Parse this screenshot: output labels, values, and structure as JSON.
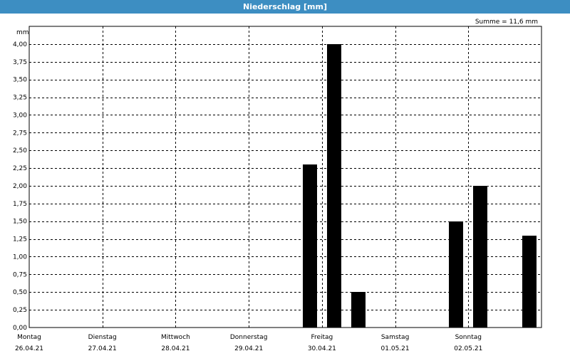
{
  "window": {
    "title": "Niederschlag [mm]"
  },
  "chart_data": {
    "type": "bar",
    "title": "Niederschlag [mm]",
    "ylabel": "mm",
    "summary": "Summe = 11,6 mm",
    "ylim": [
      0,
      4.25
    ],
    "yticks": [
      "0,00",
      "0,25",
      "0,50",
      "0,75",
      "1,00",
      "1,25",
      "1,50",
      "1,75",
      "2,00",
      "2,25",
      "2,50",
      "2,75",
      "3,00",
      "3,25",
      "3,50",
      "3,75",
      "4,00"
    ],
    "y_tick_values": [
      0,
      0.25,
      0.5,
      0.75,
      1,
      1.25,
      1.5,
      1.75,
      2,
      2.25,
      2.5,
      2.75,
      3,
      3.25,
      3.5,
      3.75,
      4
    ],
    "days": [
      {
        "weekday": "Montag",
        "date": "26.04.21"
      },
      {
        "weekday": "Dienstag",
        "date": "27.04.21"
      },
      {
        "weekday": "Mittwoch",
        "date": "28.04.21"
      },
      {
        "weekday": "Donnerstag",
        "date": "29.04.21"
      },
      {
        "weekday": "Freitag",
        "date": "30.04.21"
      },
      {
        "weekday": "Samstag",
        "date": "01.05.21"
      },
      {
        "weekday": "Sonntag",
        "date": "02.05.21"
      }
    ],
    "bars": [
      {
        "day": 3,
        "slot": 2,
        "value": 2.3
      },
      {
        "day": 4,
        "slot": 0,
        "value": 4.0
      },
      {
        "day": 4,
        "slot": 1,
        "value": 0.5
      },
      {
        "day": 5,
        "slot": 2,
        "value": 1.5
      },
      {
        "day": 6,
        "slot": 0,
        "value": 2.0
      },
      {
        "day": 6,
        "slot": 2,
        "value": 1.3
      }
    ],
    "slots_per_day": 3,
    "grid": true,
    "colors": {
      "bar": "#000000",
      "title_bar": "#3d8ec2",
      "grid": "#000000"
    }
  }
}
